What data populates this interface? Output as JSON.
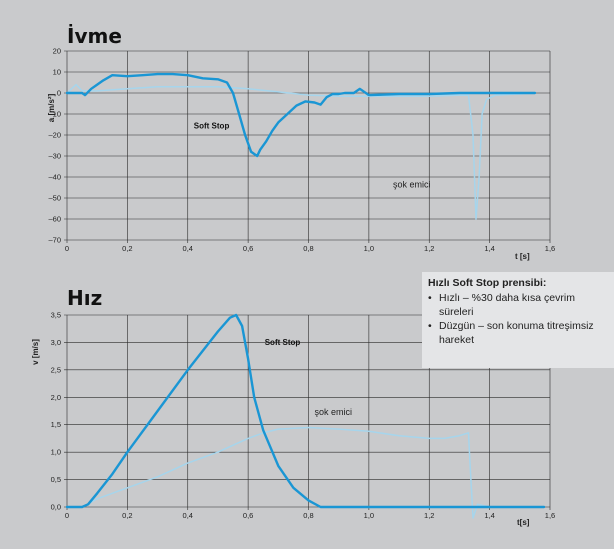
{
  "colors": {
    "dark_series": "#1a96d4",
    "light_series": "#a6d5ec",
    "background": "#c9cacc",
    "box": "#e4e5e7"
  },
  "infobox": {
    "title": "Hızlı Soft Stop prensibi:",
    "items": [
      "Hızlı – %30 daha kısa çevrim süreleri",
      "Düzgün – son konuma titreşimsiz hareket"
    ]
  },
  "chart_data": [
    {
      "type": "line",
      "title": "İvme",
      "xlabel": "t [s]",
      "ylabel": "a [m/s²]",
      "xlim": [
        0,
        1.6
      ],
      "ylim": [
        -70,
        20
      ],
      "xticks": [
        0,
        0.2,
        0.4,
        0.6,
        0.8,
        1.0,
        1.2,
        1.4,
        1.6
      ],
      "xtick_labels": [
        "0",
        "0,2",
        "0,4",
        "0,6",
        "0,8",
        "1,0",
        "1,2",
        "1,4",
        "1,6"
      ],
      "yticks": [
        20,
        10,
        0,
        -10,
        -20,
        -30,
        -40,
        -50,
        -60,
        -70
      ],
      "ytick_labels": [
        "20",
        "10",
        "0",
        "–10",
        "–20",
        "–30",
        "–40",
        "–50",
        "–60",
        "–70"
      ],
      "grid": true,
      "annotations": [
        {
          "text": "Soft Stop",
          "x": 0.42,
          "y": -17,
          "bold": true
        },
        {
          "text": "şok emici",
          "x": 1.08,
          "y": -45,
          "bold": false
        }
      ],
      "series": [
        {
          "name": "Soft Stop",
          "color": "#1a96d4",
          "width": 2.4,
          "x": [
            0,
            0.05,
            0.06,
            0.08,
            0.1,
            0.12,
            0.15,
            0.2,
            0.25,
            0.3,
            0.35,
            0.4,
            0.45,
            0.5,
            0.53,
            0.55,
            0.57,
            0.59,
            0.61,
            0.63,
            0.64,
            0.66,
            0.68,
            0.7,
            0.73,
            0.76,
            0.79,
            0.82,
            0.84,
            0.86,
            0.88,
            0.9,
            0.92,
            0.95,
            0.97,
            1.0,
            1.1,
            1.2,
            1.3,
            1.4,
            1.55
          ],
          "y": [
            0,
            0,
            -1,
            2,
            4,
            6,
            8.5,
            8,
            8.5,
            9,
            9,
            8.5,
            7,
            6.5,
            5,
            0,
            -10,
            -20,
            -28,
            -30,
            -27,
            -23,
            -18,
            -14,
            -10,
            -6,
            -4,
            -4.5,
            -5.5,
            -2,
            -0.5,
            -0.5,
            0,
            0,
            2,
            -1,
            -0.5,
            -0.5,
            0,
            0,
            0
          ]
        },
        {
          "name": "şok emici",
          "color": "#a6d5ec",
          "width": 1.5,
          "x": [
            0,
            0.03,
            0.05,
            0.1,
            0.2,
            0.3,
            0.4,
            0.5,
            0.6,
            0.7,
            0.8,
            0.9,
            1.0,
            1.1,
            1.2,
            1.3,
            1.33,
            1.345,
            1.355,
            1.365,
            1.375,
            1.39,
            1.42,
            1.5,
            1.55
          ],
          "y": [
            0,
            4,
            1,
            1,
            2,
            3,
            3,
            3,
            2,
            0.5,
            -1,
            -1.5,
            -1.5,
            -1.5,
            -1.5,
            -1,
            -1,
            -20,
            -60,
            -40,
            -10,
            -3,
            -1,
            -0.5,
            0
          ]
        }
      ]
    },
    {
      "type": "line",
      "title": "Hız",
      "xlabel": "t[s]",
      "ylabel": "v [m/s]",
      "xlim": [
        0,
        1.6
      ],
      "ylim": [
        0,
        3.5
      ],
      "xticks": [
        0,
        0.2,
        0.4,
        0.6,
        0.8,
        1.0,
        1.2,
        1.4,
        1.6
      ],
      "xtick_labels": [
        "0",
        "0,2",
        "0,4",
        "0,6",
        "0,8",
        "1,0",
        "1,2",
        "1,4",
        "1,6"
      ],
      "yticks": [
        3.5,
        3.0,
        2.5,
        2.0,
        1.5,
        1.0,
        0.5,
        0.0
      ],
      "ytick_labels": [
        "3,5",
        "3,0",
        "2,5",
        "2,0",
        "1,5",
        "1,0",
        "0,5",
        "0,0"
      ],
      "grid": true,
      "annotations": [
        {
          "text": "Soft Stop",
          "x": 0.655,
          "y": 2.95,
          "bold": true
        },
        {
          "text": "şok emici",
          "x": 0.82,
          "y": 1.68,
          "bold": false
        }
      ],
      "series": [
        {
          "name": "Soft Stop",
          "color": "#1a96d4",
          "width": 2.4,
          "x": [
            0,
            0.05,
            0.07,
            0.1,
            0.15,
            0.2,
            0.3,
            0.4,
            0.5,
            0.54,
            0.56,
            0.58,
            0.6,
            0.62,
            0.65,
            0.7,
            0.75,
            0.8,
            0.84,
            0.9,
            1.0,
            1.2,
            1.4,
            1.58
          ],
          "y": [
            0,
            0,
            0.05,
            0.25,
            0.6,
            1.0,
            1.75,
            2.5,
            3.2,
            3.45,
            3.5,
            3.3,
            2.7,
            2.0,
            1.4,
            0.75,
            0.35,
            0.12,
            0,
            0,
            0,
            0,
            0,
            0
          ]
        },
        {
          "name": "şok emici",
          "color": "#a6d5ec",
          "width": 1.5,
          "x": [
            0,
            0.05,
            0.1,
            0.2,
            0.3,
            0.4,
            0.5,
            0.6,
            0.65,
            0.7,
            0.8,
            0.9,
            1.0,
            1.1,
            1.2,
            1.25,
            1.3,
            1.33,
            1.335,
            1.345,
            1.36,
            1.4,
            1.5,
            1.58
          ],
          "y": [
            0,
            0,
            0.15,
            0.35,
            0.55,
            0.8,
            1.0,
            1.25,
            1.35,
            1.42,
            1.45,
            1.42,
            1.38,
            1.3,
            1.25,
            1.25,
            1.3,
            1.35,
            0.8,
            -0.2,
            0.05,
            0,
            0,
            0
          ]
        }
      ]
    }
  ]
}
